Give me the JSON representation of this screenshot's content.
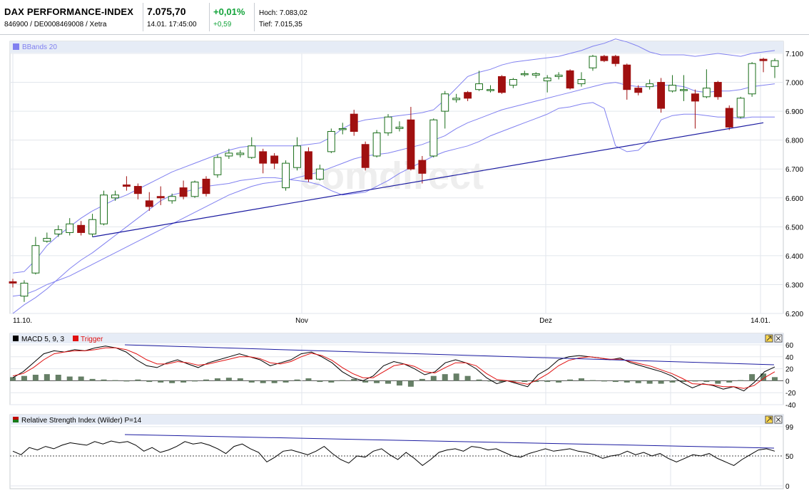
{
  "quote": {
    "name": "DAX PERFORMANCE-INDEX",
    "ids": "846900 / DE0008469008 / Xetra",
    "price": "7.075,70",
    "datetime": "14.01. 17:45:00",
    "change_pct": "+0,01%",
    "change_abs": "+0,59",
    "high": "Hoch: 7.083,02",
    "low": "Tief: 7.015,35"
  },
  "colors": {
    "up_fill": "#ffffff",
    "up_stroke": "#1a6e1a",
    "down": "#a01010",
    "bbands": "#8080f0",
    "trend": "#1a1aa0",
    "macd_hist": "#667f66",
    "trigger": "#e01010"
  },
  "icons": [
    "expand-icon",
    "close-icon"
  ],
  "chart_data": [
    {
      "type": "candlestick",
      "legend": "BBands 20",
      "x_labels": [
        "11.10.",
        "Nov",
        "Dez",
        "14.01."
      ],
      "y_ticks": [
        "7.100",
        "7.000",
        "6.900",
        "6.800",
        "6.700",
        "6.600",
        "6.500",
        "6.400",
        "6.300",
        "6.200"
      ],
      "ylim": [
        6200,
        7100
      ],
      "watermark": "comdirect",
      "candles": [
        {
          "o": 6310,
          "c": 6305,
          "h": 6320,
          "l": 6290
        },
        {
          "o": 6260,
          "c": 6305,
          "h": 6315,
          "l": 6240
        },
        {
          "o": 6340,
          "c": 6435,
          "h": 6465,
          "l": 6335
        },
        {
          "o": 6450,
          "c": 6460,
          "h": 6480,
          "l": 6445
        },
        {
          "o": 6475,
          "c": 6490,
          "h": 6505,
          "l": 6465
        },
        {
          "o": 6480,
          "c": 6510,
          "h": 6530,
          "l": 6470
        },
        {
          "o": 6505,
          "c": 6480,
          "h": 6520,
          "l": 6470
        },
        {
          "o": 6475,
          "c": 6525,
          "h": 6545,
          "l": 6465
        },
        {
          "o": 6510,
          "c": 6610,
          "h": 6625,
          "l": 6505
        },
        {
          "o": 6600,
          "c": 6610,
          "h": 6625,
          "l": 6590
        },
        {
          "o": 6645,
          "c": 6640,
          "h": 6675,
          "l": 6625
        },
        {
          "o": 6640,
          "c": 6615,
          "h": 6650,
          "l": 6595
        },
        {
          "o": 6590,
          "c": 6570,
          "h": 6620,
          "l": 6555
        },
        {
          "o": 6605,
          "c": 6600,
          "h": 6640,
          "l": 6575
        },
        {
          "o": 6590,
          "c": 6605,
          "h": 6615,
          "l": 6580
        },
        {
          "o": 6635,
          "c": 6605,
          "h": 6660,
          "l": 6595
        },
        {
          "o": 6605,
          "c": 6655,
          "h": 6660,
          "l": 6600
        },
        {
          "o": 6665,
          "c": 6615,
          "h": 6675,
          "l": 6605
        },
        {
          "o": 6680,
          "c": 6740,
          "h": 6750,
          "l": 6670
        },
        {
          "o": 6745,
          "c": 6755,
          "h": 6770,
          "l": 6735
        },
        {
          "o": 6750,
          "c": 6755,
          "h": 6765,
          "l": 6740
        },
        {
          "o": 6740,
          "c": 6780,
          "h": 6810,
          "l": 6735
        },
        {
          "o": 6760,
          "c": 6720,
          "h": 6770,
          "l": 6685
        },
        {
          "o": 6745,
          "c": 6720,
          "h": 6755,
          "l": 6700
        },
        {
          "o": 6635,
          "c": 6720,
          "h": 6730,
          "l": 6625
        },
        {
          "o": 6705,
          "c": 6780,
          "h": 6810,
          "l": 6695
        },
        {
          "o": 6760,
          "c": 6665,
          "h": 6775,
          "l": 6655
        },
        {
          "o": 6665,
          "c": 6700,
          "h": 6715,
          "l": 6660
        },
        {
          "o": 6760,
          "c": 6830,
          "h": 6840,
          "l": 6755
        },
        {
          "o": 6840,
          "c": 6840,
          "h": 6860,
          "l": 6820
        },
        {
          "o": 6890,
          "c": 6830,
          "h": 6905,
          "l": 6815
        },
        {
          "o": 6785,
          "c": 6705,
          "h": 6795,
          "l": 6695
        },
        {
          "o": 6745,
          "c": 6825,
          "h": 6835,
          "l": 6740
        },
        {
          "o": 6825,
          "c": 6880,
          "h": 6890,
          "l": 6815
        },
        {
          "o": 6840,
          "c": 6845,
          "h": 6865,
          "l": 6830
        },
        {
          "o": 6870,
          "c": 6700,
          "h": 6915,
          "l": 6695
        },
        {
          "o": 6730,
          "c": 6685,
          "h": 6745,
          "l": 6650
        },
        {
          "o": 6745,
          "c": 6870,
          "h": 6875,
          "l": 6740
        },
        {
          "o": 6900,
          "c": 6960,
          "h": 6970,
          "l": 6840
        },
        {
          "o": 6940,
          "c": 6945,
          "h": 6960,
          "l": 6930
        },
        {
          "o": 6965,
          "c": 6945,
          "h": 6970,
          "l": 6935
        },
        {
          "o": 6975,
          "c": 6995,
          "h": 7040,
          "l": 6970
        },
        {
          "o": 6975,
          "c": 6975,
          "h": 6990,
          "l": 6965
        },
        {
          "o": 7020,
          "c": 6965,
          "h": 7025,
          "l": 6960
        },
        {
          "o": 6990,
          "c": 7010,
          "h": 7015,
          "l": 6980
        },
        {
          "o": 7030,
          "c": 7030,
          "h": 7040,
          "l": 7020
        },
        {
          "o": 7025,
          "c": 7030,
          "h": 7035,
          "l": 7015
        },
        {
          "o": 7005,
          "c": 7015,
          "h": 7025,
          "l": 6965
        },
        {
          "o": 7020,
          "c": 7025,
          "h": 7035,
          "l": 7010
        },
        {
          "o": 7040,
          "c": 6980,
          "h": 7045,
          "l": 6975
        },
        {
          "o": 6995,
          "c": 7010,
          "h": 7035,
          "l": 6985
        },
        {
          "o": 7050,
          "c": 7090,
          "h": 7095,
          "l": 7040
        },
        {
          "o": 7090,
          "c": 7075,
          "h": 7095,
          "l": 7070
        },
        {
          "o": 7090,
          "c": 7065,
          "h": 7095,
          "l": 7055
        },
        {
          "o": 7060,
          "c": 6975,
          "h": 7065,
          "l": 6940
        },
        {
          "o": 6980,
          "c": 6965,
          "h": 6990,
          "l": 6955
        },
        {
          "o": 6985,
          "c": 6995,
          "h": 7010,
          "l": 6975
        },
        {
          "o": 7000,
          "c": 6910,
          "h": 7015,
          "l": 6895
        },
        {
          "o": 6970,
          "c": 6990,
          "h": 7025,
          "l": 6965
        },
        {
          "o": 6975,
          "c": 6975,
          "h": 7025,
          "l": 6935
        },
        {
          "o": 6960,
          "c": 6935,
          "h": 6975,
          "l": 6840
        },
        {
          "o": 6950,
          "c": 6980,
          "h": 7045,
          "l": 6945
        },
        {
          "o": 7000,
          "c": 6950,
          "h": 7005,
          "l": 6940
        },
        {
          "o": 6910,
          "c": 6845,
          "h": 6920,
          "l": 6835
        },
        {
          "o": 6880,
          "c": 6945,
          "h": 6950,
          "l": 6875
        },
        {
          "o": 6960,
          "c": 7065,
          "h": 7070,
          "l": 6950
        },
        {
          "o": 7080,
          "c": 7075,
          "h": 7085,
          "l": 7035
        },
        {
          "o": 7055,
          "c": 7075,
          "h": 7083,
          "l": 7015
        }
      ],
      "bband_upper": [
        6340,
        6345,
        6385,
        6435,
        6470,
        6500,
        6530,
        6555,
        6575,
        6595,
        6610,
        6630,
        6650,
        6670,
        6690,
        6705,
        6720,
        6735,
        6750,
        6765,
        6775,
        6780,
        6780,
        6780,
        6780,
        6780,
        6785,
        6790,
        6810,
        6840,
        6860,
        6870,
        6875,
        6880,
        6885,
        6890,
        6895,
        6905,
        6940,
        6980,
        7020,
        7035,
        7045,
        7060,
        7070,
        7075,
        7080,
        7085,
        7090,
        7100,
        7110,
        7125,
        7135,
        7150,
        7140,
        7125,
        7105,
        7095,
        7095,
        7095,
        7090,
        7095,
        7100,
        7095,
        7090,
        7100,
        7105,
        7110
      ],
      "bband_middle": [
        6260,
        6265,
        6280,
        6300,
        6315,
        6330,
        6350,
        6370,
        6390,
        6410,
        6430,
        6450,
        6470,
        6490,
        6510,
        6530,
        6550,
        6570,
        6590,
        6610,
        6625,
        6640,
        6650,
        6655,
        6660,
        6670,
        6680,
        6690,
        6705,
        6720,
        6735,
        6745,
        6750,
        6755,
        6765,
        6775,
        6785,
        6800,
        6815,
        6840,
        6860,
        6875,
        6890,
        6905,
        6915,
        6925,
        6935,
        6945,
        6955,
        6965,
        6975,
        6985,
        6995,
        7000,
        6990,
        6985,
        6985,
        6990,
        6990,
        6985,
        6970,
        6965,
        6970,
        6970,
        6975,
        6985,
        6990,
        6995
      ],
      "bband_lower": [
        6200,
        6230,
        6255,
        6285,
        6320,
        6355,
        6385,
        6410,
        6440,
        6470,
        6500,
        6530,
        6560,
        6590,
        6610,
        6620,
        6630,
        6640,
        6645,
        6650,
        6660,
        6665,
        6670,
        6670,
        6665,
        6660,
        6655,
        6645,
        6625,
        6610,
        6615,
        6620,
        6640,
        6660,
        6685,
        6705,
        6725,
        6745,
        6760,
        6770,
        6780,
        6795,
        6815,
        6830,
        6845,
        6860,
        6875,
        6890,
        6910,
        6915,
        6925,
        6930,
        6910,
        6780,
        6760,
        6765,
        6800,
        6870,
        6885,
        6890,
        6890,
        6885,
        6880,
        6880,
        6875,
        6880,
        6880,
        6880
      ],
      "trendline": {
        "from_index": 7,
        "from": 6465,
        "to_index": 66,
        "to": 6860
      }
    },
    {
      "type": "macd",
      "legend": [
        "MACD 5, 9, 3",
        "Trigger"
      ],
      "y_ticks": [
        "60",
        "40",
        "20",
        "0",
        "-20",
        "-40"
      ],
      "ylim": [
        -40,
        60
      ],
      "macd": [
        5,
        15,
        30,
        45,
        50,
        48,
        52,
        50,
        55,
        58,
        55,
        48,
        35,
        25,
        22,
        30,
        35,
        28,
        22,
        30,
        35,
        40,
        45,
        40,
        35,
        25,
        30,
        35,
        45,
        48,
        40,
        30,
        15,
        5,
        0,
        8,
        25,
        32,
        28,
        20,
        10,
        15,
        30,
        35,
        30,
        20,
        5,
        -5,
        0,
        -5,
        -10,
        10,
        20,
        35,
        40,
        42,
        40,
        38,
        35,
        38,
        30,
        25,
        20,
        15,
        8,
        -3,
        -12,
        -5,
        -8,
        -14,
        -10,
        -17,
        -3,
        15,
        23
      ],
      "trigger": [
        8,
        12,
        22,
        35,
        45,
        48,
        50,
        50,
        52,
        55,
        55,
        52,
        45,
        35,
        28,
        28,
        32,
        30,
        26,
        28,
        32,
        36,
        40,
        40,
        37,
        30,
        28,
        32,
        40,
        46,
        42,
        34,
        22,
        12,
        5,
        5,
        15,
        25,
        28,
        24,
        15,
        13,
        22,
        30,
        30,
        25,
        12,
        2,
        0,
        -3,
        -6,
        2,
        12,
        25,
        34,
        38,
        40,
        38,
        36,
        36,
        32,
        28,
        24,
        18,
        12,
        4,
        -5,
        -6,
        -7,
        -10,
        -10,
        -13,
        -8,
        5,
        15
      ],
      "histogram": [
        6,
        8,
        10,
        11,
        10,
        7,
        7,
        3,
        2,
        1,
        0,
        2,
        -2,
        -3,
        -4,
        -3,
        -1,
        2,
        4,
        5,
        4,
        -3,
        -4,
        -4,
        -3,
        2,
        4,
        -2,
        -3,
        1,
        3,
        -3,
        -4,
        -5,
        -8,
        -10,
        3,
        8,
        11,
        12,
        8,
        2,
        0,
        -2,
        0,
        -2,
        -2,
        -2,
        -3,
        2,
        4,
        1,
        -1,
        -2,
        -3,
        -4,
        -5,
        -5,
        -3,
        -2,
        -1,
        -2,
        -5,
        -3,
        1,
        11,
        12,
        6
      ]
    },
    {
      "type": "rsi",
      "legend": "Relative Strength Index (Wilder) P=14",
      "y_ticks": [
        "99",
        "50",
        "0"
      ],
      "ylim": [
        0,
        100
      ],
      "values": [
        58,
        52,
        64,
        60,
        66,
        62,
        68,
        72,
        70,
        68,
        74,
        70,
        75,
        72,
        74,
        68,
        58,
        64,
        56,
        60,
        66,
        74,
        70,
        72,
        68,
        62,
        54,
        66,
        70,
        62,
        56,
        40,
        48,
        58,
        60,
        56,
        52,
        58,
        66,
        54,
        44,
        38,
        50,
        48,
        58,
        62,
        52,
        44,
        56,
        46,
        34,
        44,
        56,
        60,
        62,
        58,
        66,
        64,
        60,
        62,
        56,
        50,
        48,
        54,
        58,
        62,
        58,
        60,
        62,
        58,
        56,
        52,
        46,
        50,
        52,
        58,
        52,
        56,
        50,
        54,
        46,
        40,
        46,
        52,
        50,
        54,
        46,
        40,
        34,
        44,
        52,
        60,
        62,
        58
      ],
      "trendline": {
        "from": 89,
        "to": 66
      }
    }
  ]
}
